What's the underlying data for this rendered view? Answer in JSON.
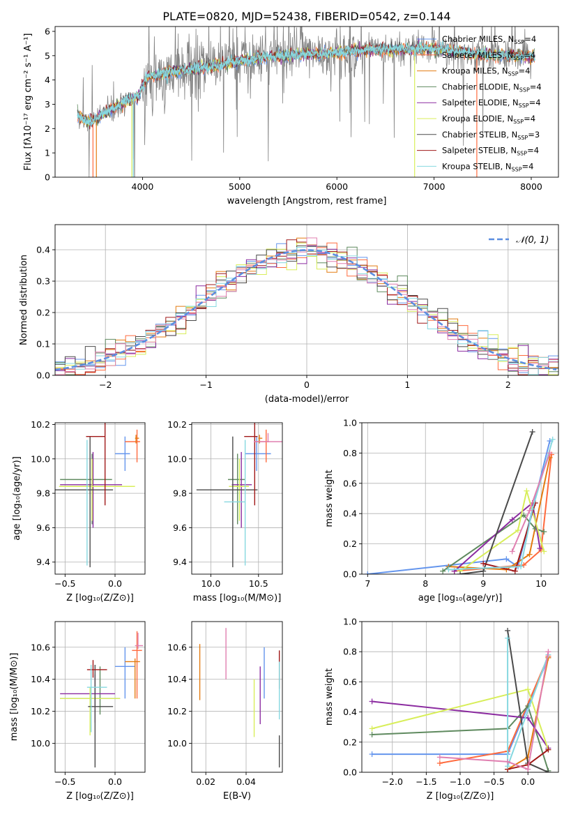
{
  "figure_title": "PLATE=0820, MJD=52438, FIBERID=0542, z=0.144",
  "colors": {
    "chabrier_miles": "#6495ed",
    "salpeter_miles": "#ff6a3d",
    "kroupa_miles": "#e37b10",
    "chabrier_elodie": "#5f8a5f",
    "salpeter_elodie": "#8b2ba0",
    "kroupa_elodie": "#d8ee5a",
    "chabrier_stelib": "#4a4a4a",
    "salpeter_stelib": "#a01818",
    "kroupa_stelib": "#86d8e0",
    "pink": "#e07fb0",
    "data_spectrum": "#808080"
  },
  "chart_data": [
    {
      "id": "spectrum",
      "type": "line",
      "xlabel": "wavelength [Angstrom, rest frame]",
      "ylabel": "Flux [fλ10⁻¹⁷ erg cm⁻² s⁻¹ A⁻¹]",
      "xlim": [
        3100,
        8280
      ],
      "ylim": [
        0,
        6.2
      ],
      "xticks": [
        4000,
        5000,
        6000,
        7000,
        8000
      ],
      "yticks": [
        0,
        1,
        2,
        3,
        4,
        5,
        6
      ],
      "legend_position": "right",
      "legend": [
        {
          "text": "Chabrier MILES, N",
          "sub": "SSP",
          "tail": "=4",
          "color_key": "chabrier_miles"
        },
        {
          "text": "Salpeter MILES, N",
          "sub": "SSP",
          "tail": "=4",
          "color_key": "salpeter_miles"
        },
        {
          "text": "Kroupa MILES, N",
          "sub": "SSP",
          "tail": "=4",
          "color_key": "kroupa_miles"
        },
        {
          "text": "Chabrier ELODIE, N",
          "sub": "SSP",
          "tail": "=4",
          "color_key": "chabrier_elodie"
        },
        {
          "text": "Salpeter ELODIE, N",
          "sub": "SSP",
          "tail": "=4",
          "color_key": "salpeter_elodie"
        },
        {
          "text": "Kroupa ELODIE, N",
          "sub": "SSP",
          "tail": "=4",
          "color_key": "kroupa_elodie"
        },
        {
          "text": "Chabrier STELIB, N",
          "sub": "SSP",
          "tail": "=3",
          "color_key": "chabrier_stelib"
        },
        {
          "text": "Salpeter STELIB, N",
          "sub": "SSP",
          "tail": "=4",
          "color_key": "salpeter_stelib"
        },
        {
          "text": "Kroupa STELIB, N",
          "sub": "SSP",
          "tail": "=4",
          "color_key": "kroupa_stelib"
        }
      ],
      "continuum_anchors": [
        [
          3330,
          2.55
        ],
        [
          3450,
          2.25
        ],
        [
          3600,
          2.6
        ],
        [
          3800,
          3.05
        ],
        [
          3950,
          3.3
        ],
        [
          4050,
          4.15
        ],
        [
          4300,
          4.35
        ],
        [
          4500,
          4.45
        ],
        [
          4800,
          4.6
        ],
        [
          5000,
          4.8
        ],
        [
          5300,
          4.95
        ],
        [
          5600,
          5.05
        ],
        [
          6000,
          5.1
        ],
        [
          6300,
          5.25
        ],
        [
          6700,
          5.25
        ],
        [
          7000,
          5.3
        ],
        [
          7500,
          5.05
        ],
        [
          8000,
          4.95
        ],
        [
          8050,
          4.9
        ]
      ]
    },
    {
      "id": "residual_hist",
      "type": "line",
      "xlabel": "(data-model)/error",
      "ylabel": "Normed distribution",
      "xlim": [
        -2.5,
        2.5
      ],
      "ylim": [
        0,
        0.48
      ],
      "xticks": [
        -2,
        -1,
        0,
        1,
        2
      ],
      "yticks": [
        0.0,
        0.1,
        0.2,
        0.3,
        0.4
      ],
      "grid": true,
      "legend_position": "top-right",
      "normal_label": "𝒩(0, 1)",
      "bin_width": 0.1
    },
    {
      "id": "age_vs_Z",
      "type": "scatter",
      "xlabel": "Z [log₁₀(Z/Z⊙)]",
      "ylabel": "age  [log₁₀(age/yr)]",
      "xlim": [
        -0.6,
        0.3
      ],
      "ylim": [
        9.33,
        10.21
      ],
      "xticks": [
        -0.5,
        0.0
      ],
      "yticks": [
        9.4,
        9.6,
        9.8,
        10.0,
        10.2
      ],
      "grid": true,
      "points": [
        {
          "c": "chabrier_miles",
          "x": 0.1,
          "xerr": [
            0.1,
            0.05
          ],
          "y": 10.03,
          "yerr": [
            0.1,
            0.1
          ]
        },
        {
          "c": "salpeter_miles",
          "x": 0.22,
          "xerr": [
            0.12,
            0.03
          ],
          "y": 10.1,
          "yerr": [
            0.12,
            0.07
          ]
        },
        {
          "c": "kroupa_miles",
          "x": 0.21,
          "xerr": [
            0.01,
            0.03
          ],
          "y": 10.12,
          "yerr": [
            0.03,
            0.02
          ]
        },
        {
          "c": "chabrier_elodie",
          "x": -0.23,
          "xerr": [
            0.32,
            0.2
          ],
          "y": 9.88,
          "yerr": [
            0.26,
            0.15
          ]
        },
        {
          "c": "salpeter_elodie",
          "x": -0.22,
          "xerr": [
            0.33,
            0.29
          ],
          "y": 9.85,
          "yerr": [
            0.25,
            0.19
          ]
        },
        {
          "c": "kroupa_elodie",
          "x": -0.23,
          "xerr": [
            0.33,
            0.43
          ],
          "y": 9.84,
          "yerr": [
            0.2,
            0.16
          ]
        },
        {
          "c": "chabrier_stelib",
          "x": -0.25,
          "xerr": [
            0.35,
            0.23
          ],
          "y": 9.82,
          "yerr": [
            0.45,
            0.31
          ]
        },
        {
          "c": "salpeter_stelib",
          "x": -0.1,
          "xerr": [
            0.19,
            0.0
          ],
          "y": 10.13,
          "yerr": [
            0.4,
            0.08
          ]
        },
        {
          "c": "kroupa_stelib",
          "x": -0.28,
          "xerr": [
            0.0,
            0.0
          ],
          "y": 9.75,
          "yerr": [
            0.37,
            0.36
          ]
        }
      ]
    },
    {
      "id": "age_vs_mass",
      "type": "scatter",
      "xlabel": "mass [log₁₀(M/M⊙)]",
      "ylabel": "",
      "xlim": [
        9.8,
        10.75
      ],
      "ylim": [
        9.33,
        10.21
      ],
      "xticks": [
        10.0,
        10.5
      ],
      "yticks": [
        9.4,
        9.6,
        9.8,
        10.0,
        10.2
      ],
      "grid": true,
      "points": [
        {
          "c": "chabrier_miles",
          "x": 10.48,
          "xerr": [
            0.12,
            0.15
          ],
          "y": 10.03,
          "yerr": [
            0.1,
            0.1
          ]
        },
        {
          "c": "salpeter_miles",
          "x": 10.58,
          "xerr": [
            0.12,
            0.03
          ],
          "y": 10.1,
          "yerr": [
            0.12,
            0.07
          ]
        },
        {
          "c": "kroupa_miles",
          "x": 10.51,
          "xerr": [
            0.01,
            0.03
          ],
          "y": 10.12,
          "yerr": [
            0.03,
            0.02
          ]
        },
        {
          "c": "chabrier_elodie",
          "x": 10.28,
          "xerr": [
            0.1,
            0.08
          ],
          "y": 9.88,
          "yerr": [
            0.26,
            0.15
          ]
        },
        {
          "c": "salpeter_elodie",
          "x": 10.32,
          "xerr": [
            0.1,
            0.11
          ],
          "y": 9.85,
          "yerr": [
            0.25,
            0.19
          ]
        },
        {
          "c": "kroupa_elodie",
          "x": 10.3,
          "xerr": [
            0.11,
            0.1
          ],
          "y": 9.84,
          "yerr": [
            0.2,
            0.16
          ]
        },
        {
          "c": "chabrier_stelib",
          "x": 10.23,
          "xerr": [
            0.38,
            0.26
          ],
          "y": 9.82,
          "yerr": [
            0.45,
            0.31
          ]
        },
        {
          "c": "salpeter_stelib",
          "x": 10.46,
          "xerr": [
            0.11,
            0.03
          ],
          "y": 10.13,
          "yerr": [
            0.4,
            0.08
          ]
        },
        {
          "c": "kroupa_stelib",
          "x": 10.36,
          "xerr": [
            0.22,
            0.0
          ],
          "y": 9.75,
          "yerr": [
            0.37,
            0.36
          ]
        },
        {
          "c": "pink",
          "x": 10.6,
          "xerr": [
            0.15,
            0.15
          ],
          "y": 10.1,
          "yerr": [
            0.0,
            0.05
          ]
        }
      ]
    },
    {
      "id": "massweight_vs_age",
      "type": "line",
      "xlabel": "age  [log₁₀(age/yr)]",
      "ylabel": "mass weight",
      "xlim": [
        6.9,
        10.3
      ],
      "ylim": [
        0.0,
        1.0
      ],
      "xticks": [
        7,
        8,
        9,
        10
      ],
      "yticks": [
        0.0,
        0.2,
        0.4,
        0.6,
        0.8,
        1.0
      ],
      "grid": true,
      "series": [
        {
          "c": "chabrier_miles",
          "x": [
            7.0,
            9.4,
            9.6,
            10.15
          ],
          "y": [
            0.0,
            0.1,
            0.05,
            0.88
          ]
        },
        {
          "c": "salpeter_miles",
          "x": [
            8.5,
            9.7,
            10.0,
            10.18
          ],
          "y": [
            0.02,
            0.06,
            0.16,
            0.79
          ]
        },
        {
          "c": "kroupa_miles",
          "x": [
            8.4,
            9.4,
            9.8,
            10.15
          ],
          "y": [
            0.05,
            0.03,
            0.13,
            0.77
          ]
        },
        {
          "c": "chabrier_elodie",
          "x": [
            8.3,
            9.7,
            9.9,
            10.05
          ],
          "y": [
            0.02,
            0.39,
            0.3,
            0.28
          ]
        },
        {
          "c": "salpeter_elodie",
          "x": [
            8.5,
            9.5,
            9.85,
            9.98
          ],
          "y": [
            0.02,
            0.36,
            0.47,
            0.17
          ]
        },
        {
          "c": "kroupa_elodie",
          "x": [
            8.6,
            9.6,
            9.75,
            10.05
          ],
          "y": [
            0.02,
            0.29,
            0.55,
            0.15
          ]
        },
        {
          "c": "chabrier_stelib",
          "x": [
            8.6,
            9.0,
            9.85
          ],
          "y": [
            0.0,
            0.02,
            0.94
          ]
        },
        {
          "c": "salpeter_stelib",
          "x": [
            9.0,
            9.55,
            9.9
          ],
          "y": [
            0.07,
            0.02,
            0.47
          ]
        },
        {
          "c": "kroupa_stelib",
          "x": [
            8.4,
            9.65,
            9.85,
            10.2
          ],
          "y": [
            0.03,
            0.05,
            0.43,
            0.89
          ]
        },
        {
          "c": "pink",
          "x": [
            9.5,
            9.8,
            10.15
          ],
          "y": [
            0.15,
            0.42,
            0.8
          ]
        }
      ]
    },
    {
      "id": "mass_vs_Z",
      "type": "scatter",
      "xlabel": "Z [log₁₀(Z/Z⊙)]",
      "ylabel": "mass [log₁₀(M/M⊙)]",
      "xlim": [
        -0.6,
        0.3
      ],
      "ylim": [
        9.82,
        10.76
      ],
      "xticks": [
        -0.5,
        0.0
      ],
      "yticks": [
        10.0,
        10.2,
        10.4,
        10.6
      ],
      "grid": true,
      "points": [
        {
          "c": "chabrier_miles",
          "x": 0.1,
          "xerr": [
            0.1,
            0.1
          ],
          "y": 10.48,
          "yerr": [
            0.2,
            0.12
          ]
        },
        {
          "c": "salpeter_miles",
          "x": 0.22,
          "xerr": [
            0.05,
            0.05
          ],
          "y": 10.58,
          "yerr": [
            0.3,
            0.12
          ]
        },
        {
          "c": "kroupa_miles",
          "x": 0.2,
          "xerr": [
            0.1,
            0.05
          ],
          "y": 10.51,
          "yerr": [
            0.23,
            0.02
          ]
        },
        {
          "c": "chabrier_elodie",
          "x": -0.15,
          "xerr": [
            0.4,
            0.2
          ],
          "y": 10.28,
          "yerr": [
            0.1,
            0.2
          ]
        },
        {
          "c": "salpeter_elodie",
          "x": -0.2,
          "xerr": [
            0.35,
            0.2
          ],
          "y": 10.31,
          "yerr": [
            0.18,
            0.12
          ]
        },
        {
          "c": "kroupa_elodie",
          "x": -0.25,
          "xerr": [
            0.3,
            0.3
          ],
          "y": 10.28,
          "yerr": [
            0.23,
            0.07
          ]
        },
        {
          "c": "chabrier_stelib",
          "x": -0.2,
          "xerr": [
            0.07,
            0.18
          ],
          "y": 10.23,
          "yerr": [
            0.38,
            0.26
          ]
        },
        {
          "c": "salpeter_stelib",
          "x": -0.22,
          "xerr": [
            0.06,
            0.14
          ],
          "y": 10.46,
          "yerr": [
            0.05,
            0.06
          ]
        },
        {
          "c": "kroupa_stelib",
          "x": -0.24,
          "xerr": [
            0.04,
            0.16
          ],
          "y": 10.35,
          "yerr": [
            0.28,
            0.14
          ]
        },
        {
          "c": "pink",
          "x": 0.23,
          "xerr": [
            0.03,
            0.05
          ],
          "y": 10.61,
          "yerr": [
            0.02,
            0.08
          ]
        }
      ]
    },
    {
      "id": "mass_vs_ebv",
      "type": "scatter",
      "xlabel": "E(B-V)",
      "ylabel": "",
      "xlim": [
        0.013,
        0.058
      ],
      "ylim": [
        9.82,
        10.76
      ],
      "xticks": [
        0.02,
        0.04
      ],
      "yticks": [
        10.0,
        10.2,
        10.4,
        10.6
      ],
      "grid": true,
      "points": [
        {
          "c": "kroupa_miles",
          "x": 0.017,
          "xerr": [
            0,
            0
          ],
          "y": 10.45,
          "yerr": [
            0.18,
            0.17
          ]
        },
        {
          "c": "pink",
          "x": 0.03,
          "xerr": [
            0,
            0
          ],
          "y": 10.56,
          "yerr": [
            0.16,
            0.16
          ]
        },
        {
          "c": "kroupa_elodie",
          "x": 0.044,
          "xerr": [
            0,
            0
          ],
          "y": 10.22,
          "yerr": [
            0.18,
            0.18
          ]
        },
        {
          "c": "salpeter_elodie",
          "x": 0.047,
          "xerr": [
            0,
            0
          ],
          "y": 10.3,
          "yerr": [
            0.18,
            0.18
          ]
        },
        {
          "c": "chabrier_miles",
          "x": 0.049,
          "xerr": [
            0,
            0
          ],
          "y": 10.44,
          "yerr": [
            0.16,
            0.16
          ]
        },
        {
          "c": "salpeter_stelib",
          "x": 0.0565,
          "xerr": [
            0,
            0
          ],
          "y": 10.46,
          "yerr": [
            0.12,
            0.12
          ]
        },
        {
          "c": "kroupa_stelib",
          "x": 0.0565,
          "xerr": [
            0,
            0
          ],
          "y": 10.33,
          "yerr": [
            0.18,
            0.18
          ]
        },
        {
          "c": "chabrier_stelib",
          "x": 0.0565,
          "xerr": [
            0,
            0
          ],
          "y": 9.95,
          "yerr": [
            0.1,
            0.1
          ]
        }
      ]
    },
    {
      "id": "massweight_vs_Z",
      "type": "line",
      "xlabel": "Z [log₁₀(Z/Z⊙)]",
      "ylabel": "mass weight",
      "xlim": [
        -2.45,
        0.45
      ],
      "ylim": [
        0.0,
        1.0
      ],
      "xticks": [
        -2.0,
        -1.5,
        -1.0,
        -0.5,
        0.0
      ],
      "yticks": [
        0.0,
        0.2,
        0.4,
        0.6,
        0.8,
        1.0
      ],
      "grid": true,
      "series": [
        {
          "c": "chabrier_miles",
          "x": [
            -2.3,
            -0.3,
            0.3
          ],
          "y": [
            0.12,
            0.12,
            0.76
          ]
        },
        {
          "c": "salpeter_miles",
          "x": [
            -1.3,
            -0.3,
            0.3
          ],
          "y": [
            0.06,
            0.14,
            0.77
          ]
        },
        {
          "c": "kroupa_miles",
          "x": [
            -0.3,
            0.0,
            0.3
          ],
          "y": [
            0.02,
            0.1,
            0.76
          ]
        },
        {
          "c": "chabrier_elodie",
          "x": [
            -2.3,
            -0.3,
            0.0,
            0.3
          ],
          "y": [
            0.25,
            0.29,
            0.44,
            0.01
          ]
        },
        {
          "c": "salpeter_elodie",
          "x": [
            -2.3,
            0.0,
            0.3
          ],
          "y": [
            0.47,
            0.36,
            0.16
          ]
        },
        {
          "c": "kroupa_elodie",
          "x": [
            -2.3,
            0.0,
            0.3
          ],
          "y": [
            0.29,
            0.55,
            0.15
          ]
        },
        {
          "c": "chabrier_stelib",
          "x": [
            -0.3,
            0.0,
            0.3
          ],
          "y": [
            0.94,
            0.06,
            0.0
          ]
        },
        {
          "c": "salpeter_stelib",
          "x": [
            -0.3,
            0.0,
            0.3
          ],
          "y": [
            0.02,
            0.05,
            0.15
          ]
        },
        {
          "c": "kroupa_stelib",
          "x": [
            -0.3,
            -0.3,
            0.3
          ],
          "y": [
            0.89,
            0.04,
            0.78
          ]
        },
        {
          "c": "pink",
          "x": [
            -1.3,
            -0.3,
            0.0,
            0.3
          ],
          "y": [
            0.1,
            0.07,
            0.02,
            0.8
          ]
        }
      ]
    }
  ]
}
